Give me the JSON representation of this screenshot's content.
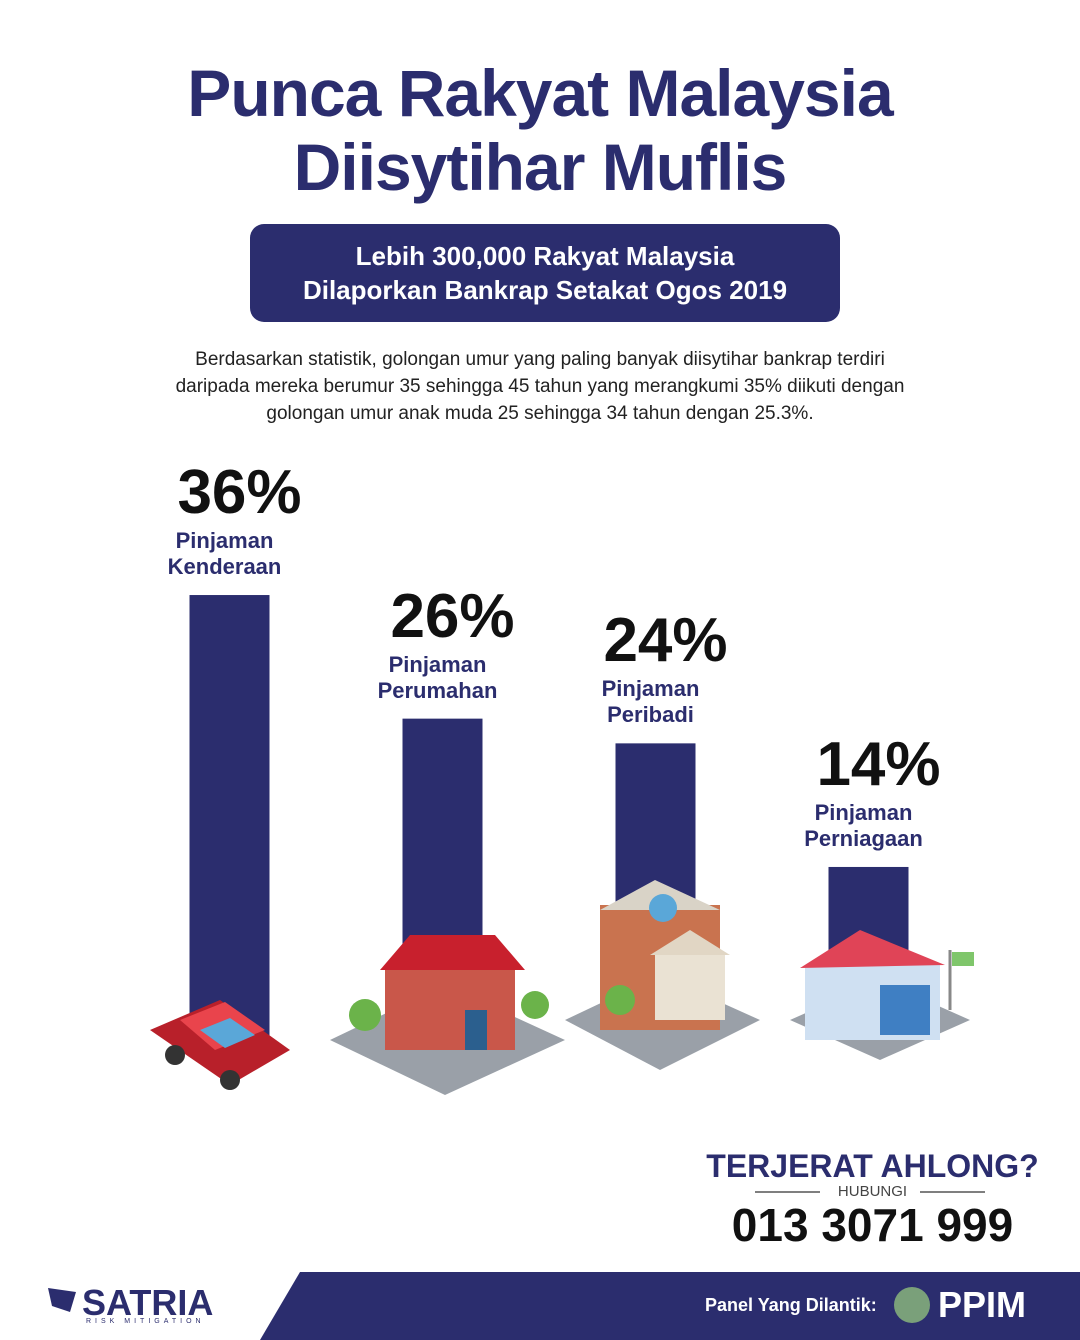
{
  "chart_data": {
    "type": "bar",
    "title": [
      "Punca Rakyat Malaysia",
      "Diisytihar Muflis"
    ],
    "subtitle": [
      "Lebih 300,000 Rakyat Malaysia",
      "Dilaporkan Bankrap Setakat Ogos 2019"
    ],
    "description": "Berdasarkan statistik, golongan umur yang paling banyak diisytihar bankrap terdiri daripada mereka berumur 35 sehingga 45 tahun yang merangkumi 35% diikuti dengan golongan umur anak muda 25 sehingga 34 tahun dengan 25.3%.",
    "categories": [
      "Pinjaman Kenderaan",
      "Pinjaman Perumahan",
      "Pinjaman Peribadi",
      "Pinjaman Perniagaan"
    ],
    "values": [
      36,
      26,
      24,
      14
    ],
    "value_labels": [
      "36%",
      "26%",
      "24%",
      "14%"
    ],
    "color": "#2b2d6e"
  },
  "contact": {
    "question": "TERJERAT AHLONG?",
    "prompt": "HUBUNGI",
    "phone": "013 3071 999"
  },
  "footer": {
    "brand": "SATRIA",
    "tagline": "RISK MITIGATION",
    "panel": "Panel Yang Dilantik:",
    "partner": "PPIM"
  }
}
